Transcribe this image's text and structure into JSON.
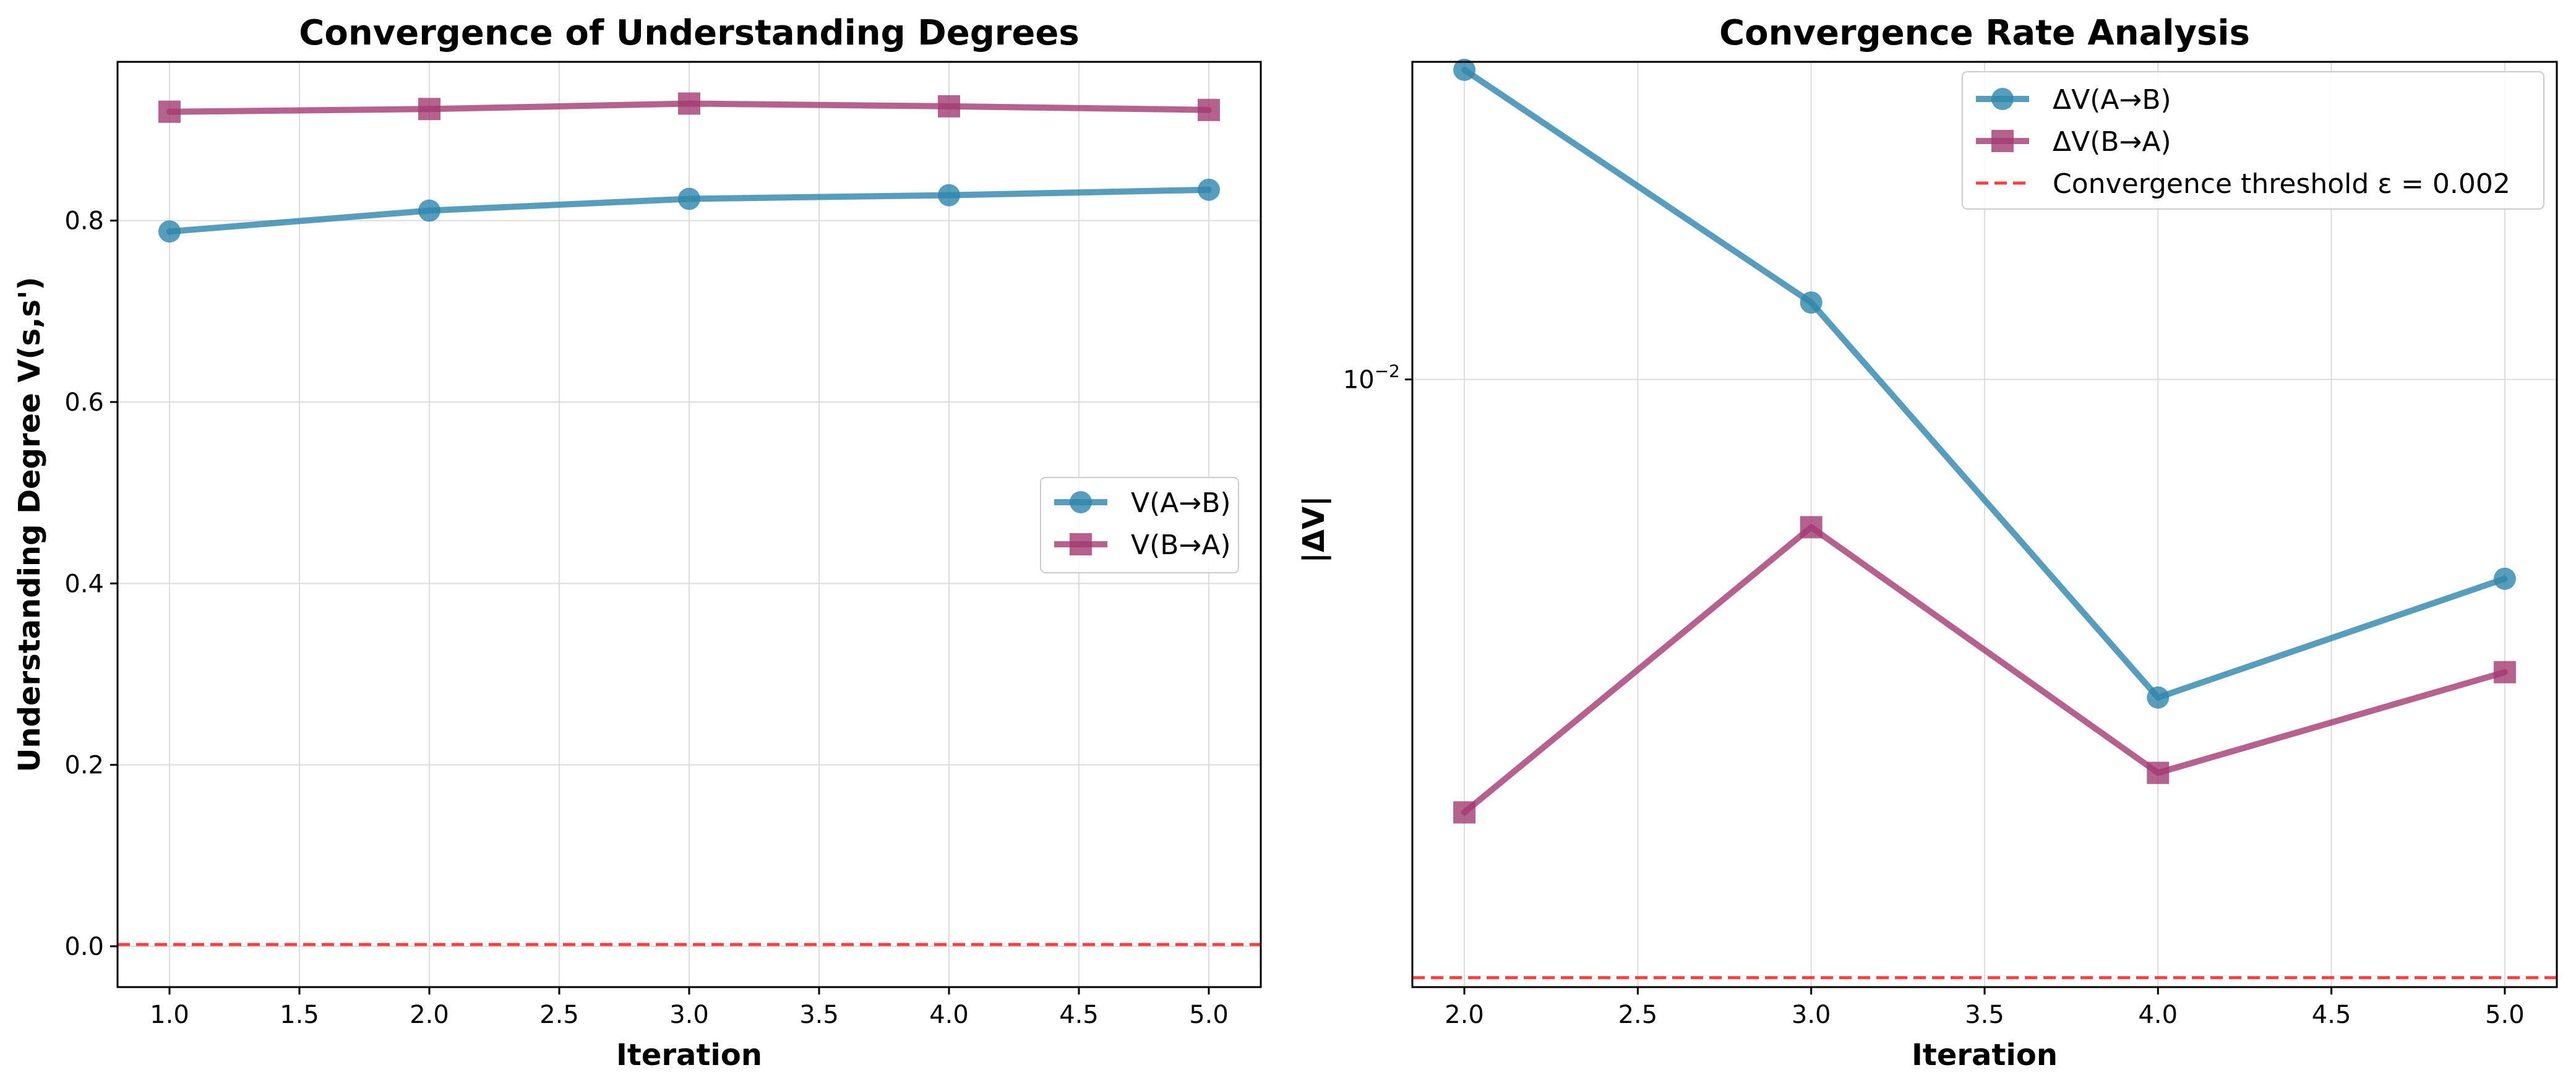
{
  "chart_data": [
    {
      "type": "line",
      "title": "Convergence of Understanding Degrees",
      "xlabel": "Iteration",
      "ylabel": "Understanding Degree V(s,s')",
      "xlim": [
        0.8,
        5.2
      ],
      "ylim": [
        -0.045,
        0.975
      ],
      "xticks": [
        1.0,
        1.5,
        2.0,
        2.5,
        3.0,
        3.5,
        4.0,
        4.5,
        5.0
      ],
      "xtick_labels": [
        "1.0",
        "1.5",
        "2.0",
        "2.5",
        "3.0",
        "3.5",
        "4.0",
        "4.5",
        "5.0"
      ],
      "yticks": [
        0.0,
        0.2,
        0.4,
        0.6,
        0.8
      ],
      "ytick_labels": [
        "0.0",
        "0.2",
        "0.4",
        "0.6",
        "0.8"
      ],
      "grid": true,
      "legend_position": "center-right",
      "series": [
        {
          "name": "V(A→B)",
          "marker": "circle",
          "color": "#2E86AB",
          "x": [
            1,
            2,
            3,
            4,
            5
          ],
          "y": [
            0.788,
            0.811,
            0.824,
            0.828,
            0.834
          ]
        },
        {
          "name": "V(B→A)",
          "marker": "square",
          "color": "#A23B72",
          "x": [
            1,
            2,
            3,
            4,
            5
          ],
          "y": [
            0.92,
            0.923,
            0.929,
            0.926,
            0.922
          ]
        }
      ],
      "reference_lines": [
        {
          "orientation": "horizontal",
          "y": 0.002,
          "color": "#FF0000",
          "style": "dashed"
        }
      ]
    },
    {
      "type": "line",
      "title": "Convergence Rate Analysis",
      "xlabel": "Iteration",
      "ylabel": "|ΔV|",
      "yscale": "log",
      "xlim": [
        1.85,
        5.15
      ],
      "ylim": [
        0.00195,
        0.0235
      ],
      "xticks": [
        2.0,
        2.5,
        3.0,
        3.5,
        4.0,
        4.5,
        5.0
      ],
      "xtick_labels": [
        "2.0",
        "2.5",
        "3.0",
        "3.5",
        "4.0",
        "4.5",
        "5.0"
      ],
      "yticks": [
        0.01
      ],
      "ytick_base": "10",
      "ytick_exponent": "−2",
      "grid": true,
      "legend_position": "top-right",
      "series": [
        {
          "name": "ΔV(A→B)",
          "marker": "circle",
          "color": "#2E86AB",
          "x": [
            2,
            3,
            4,
            5
          ],
          "y": [
            0.023,
            0.0123,
            0.00425,
            0.00585
          ]
        },
        {
          "name": "ΔV(B→A)",
          "marker": "square",
          "color": "#A23B72",
          "x": [
            2,
            3,
            4,
            5
          ],
          "y": [
            0.00312,
            0.00672,
            0.00347,
            0.00455
          ]
        }
      ],
      "reference_lines": [
        {
          "name": "Convergence threshold ε = 0.002",
          "orientation": "horizontal",
          "y": 0.002,
          "color": "#FF0000",
          "style": "dashed"
        }
      ]
    }
  ]
}
